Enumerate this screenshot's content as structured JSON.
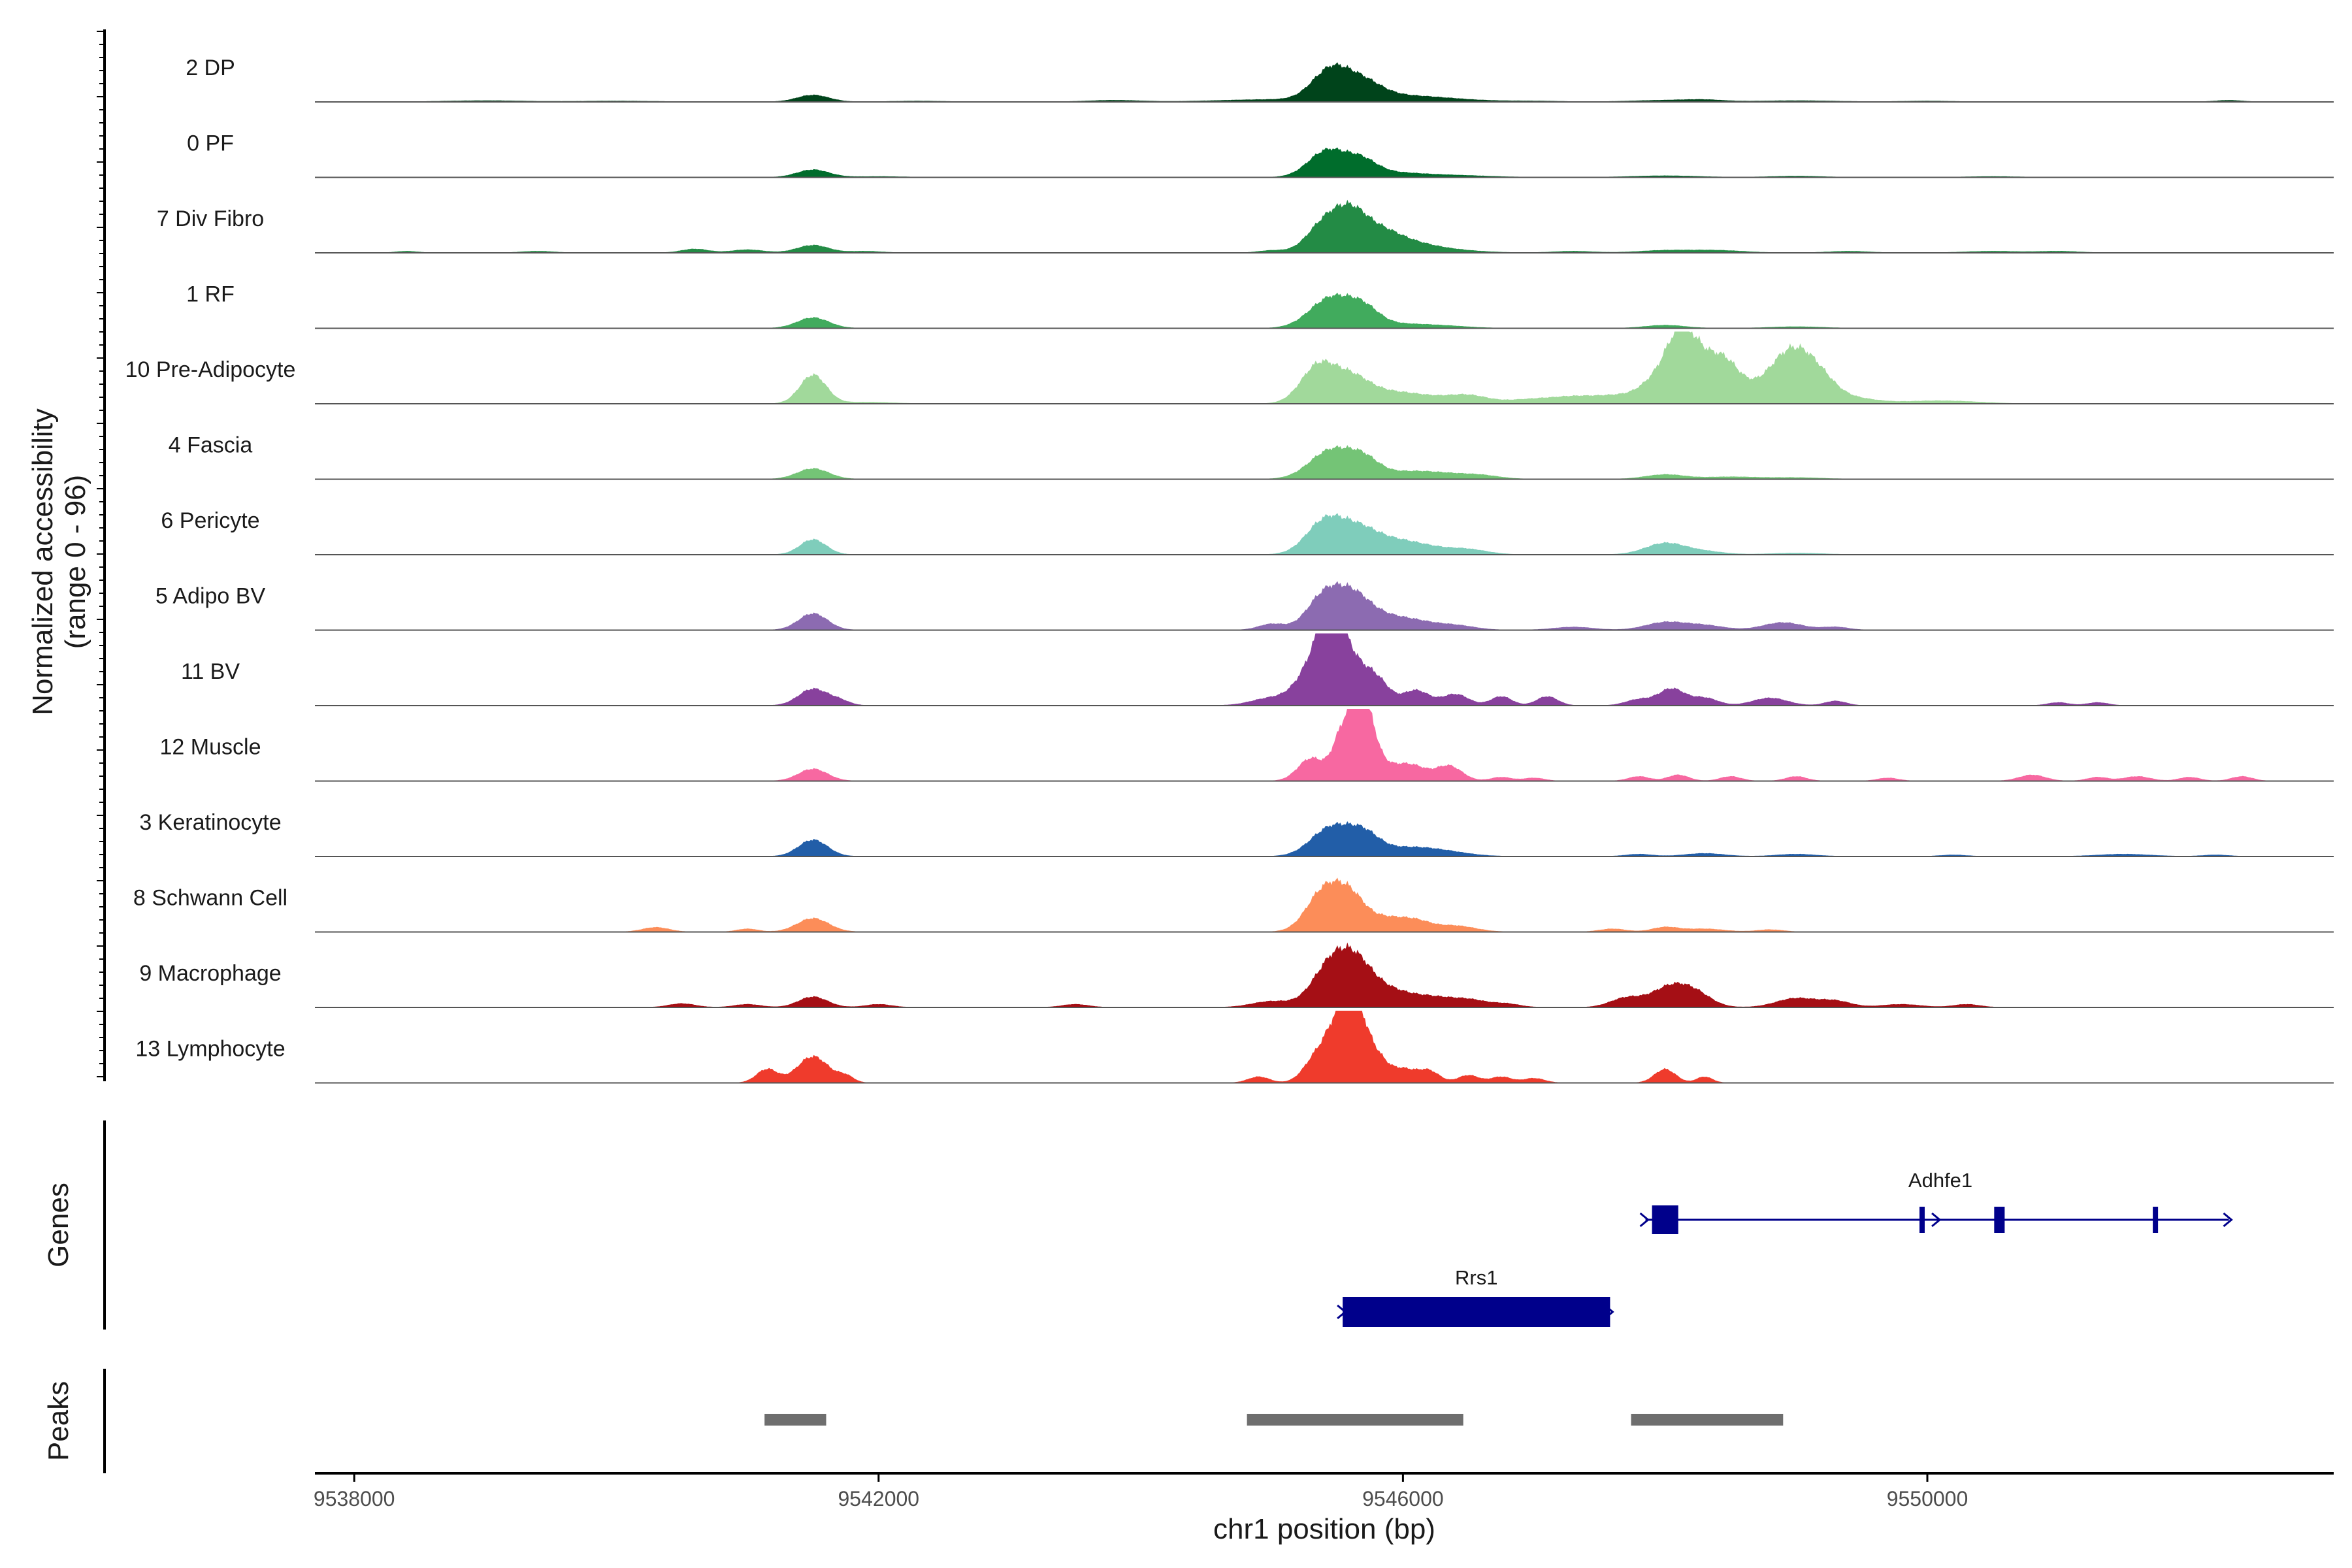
{
  "chart_data": {
    "type": "area",
    "region": "chr1",
    "xlim": [
      9537700,
      9553100
    ],
    "xlabel": "chr1 position (bp)",
    "ylabel": "Normalized accessibility",
    "ylabel_range": "(range 0 - 96)",
    "ylim": [
      0,
      96
    ],
    "x_ticks": [
      9538000,
      9542000,
      9546000,
      9550000
    ],
    "x_tick_labels": [
      "9538000",
      "9542000",
      "9546000",
      "9550000"
    ],
    "tracks": [
      {
        "name": "2 DP",
        "color": "#00441b",
        "peaks": [
          [
            9539000,
            300,
            1.5
          ],
          [
            9540000,
            300,
            1
          ],
          [
            9541500,
            120,
            9
          ],
          [
            9542300,
            200,
            1
          ],
          [
            9543800,
            200,
            2
          ],
          [
            9545000,
            400,
            3
          ],
          [
            9545450,
            140,
            40
          ],
          [
            9545700,
            140,
            20
          ],
          [
            9545900,
            300,
            7
          ],
          [
            9546300,
            300,
            3
          ],
          [
            9547000,
            200,
            1
          ],
          [
            9548000,
            250,
            2
          ],
          [
            9548300,
            150,
            2
          ],
          [
            9549000,
            300,
            1.5
          ],
          [
            9550000,
            200,
            1
          ],
          [
            9552300,
            100,
            2
          ]
        ]
      },
      {
        "name": "0 PF",
        "color": "#006d2c",
        "peaks": [
          [
            9541500,
            120,
            10
          ],
          [
            9542000,
            200,
            1
          ],
          [
            9545420,
            140,
            35
          ],
          [
            9545680,
            120,
            20
          ],
          [
            9545900,
            200,
            5
          ],
          [
            9546300,
            300,
            3
          ],
          [
            9548000,
            250,
            2
          ],
          [
            9549000,
            200,
            1.5
          ],
          [
            9550500,
            200,
            1
          ]
        ]
      },
      {
        "name": "7 Div Fibro",
        "color": "#238b45",
        "peaks": [
          [
            9538400,
            80,
            2
          ],
          [
            9539400,
            120,
            2
          ],
          [
            9540600,
            100,
            5
          ],
          [
            9541000,
            120,
            4
          ],
          [
            9541500,
            120,
            10
          ],
          [
            9541900,
            120,
            2
          ],
          [
            9545000,
            100,
            3
          ],
          [
            9545400,
            130,
            38
          ],
          [
            9545600,
            120,
            42
          ],
          [
            9545800,
            150,
            22
          ],
          [
            9546000,
            200,
            12
          ],
          [
            9546300,
            250,
            4
          ],
          [
            9547300,
            150,
            2
          ],
          [
            9548000,
            200,
            3
          ],
          [
            9548400,
            200,
            3
          ],
          [
            9549400,
            150,
            2
          ],
          [
            9550500,
            200,
            2
          ],
          [
            9551000,
            150,
            2
          ]
        ]
      },
      {
        "name": "1 RF",
        "color": "#41ab5d",
        "peaks": [
          [
            9541500,
            120,
            14
          ],
          [
            9545450,
            160,
            40
          ],
          [
            9545700,
            120,
            22
          ],
          [
            9545950,
            200,
            5
          ],
          [
            9546300,
            200,
            3
          ],
          [
            9548000,
            150,
            4
          ],
          [
            9549000,
            200,
            2
          ]
        ]
      },
      {
        "name": "10 Pre-Adipocyte",
        "color": "#a1d99b",
        "peaks": [
          [
            9541500,
            100,
            38
          ],
          [
            9541900,
            200,
            2
          ],
          [
            9545350,
            130,
            48
          ],
          [
            9545600,
            140,
            30
          ],
          [
            9545850,
            200,
            12
          ],
          [
            9546150,
            200,
            8
          ],
          [
            9546500,
            150,
            10
          ],
          [
            9547000,
            200,
            6
          ],
          [
            9547300,
            150,
            5
          ],
          [
            9547700,
            250,
            12
          ],
          [
            9547900,
            100,
            16
          ],
          [
            9548100,
            110,
            75
          ],
          [
            9548250,
            120,
            45
          ],
          [
            9548450,
            110,
            42
          ],
          [
            9548700,
            200,
            22
          ],
          [
            9548900,
            120,
            35
          ],
          [
            9549050,
            120,
            40
          ],
          [
            9549200,
            120,
            22
          ],
          [
            9549400,
            200,
            8
          ],
          [
            9550000,
            200,
            3
          ],
          [
            9550300,
            200,
            2
          ]
        ]
      },
      {
        "name": "4 Fascia",
        "color": "#74c476",
        "peaks": [
          [
            9541500,
            120,
            14
          ],
          [
            9545450,
            160,
            38
          ],
          [
            9545700,
            120,
            22
          ],
          [
            9546000,
            200,
            8
          ],
          [
            9546300,
            200,
            6
          ],
          [
            9546600,
            150,
            4
          ],
          [
            9548000,
            150,
            6
          ],
          [
            9548500,
            200,
            3
          ],
          [
            9549000,
            200,
            2
          ]
        ]
      },
      {
        "name": "6 Pericyte",
        "color": "#7fcdbb",
        "peaks": [
          [
            9541500,
            100,
            20
          ],
          [
            9545400,
            140,
            42
          ],
          [
            9545650,
            150,
            28
          ],
          [
            9545900,
            200,
            14
          ],
          [
            9546150,
            200,
            8
          ],
          [
            9546500,
            150,
            6
          ],
          [
            9548000,
            150,
            15
          ],
          [
            9548300,
            150,
            4
          ],
          [
            9549000,
            200,
            2
          ]
        ]
      },
      {
        "name": "5 Adipo BV",
        "color": "#8c6bb1",
        "peaks": [
          [
            9541500,
            110,
            22
          ],
          [
            9545000,
            100,
            8
          ],
          [
            9545400,
            130,
            45
          ],
          [
            9545620,
            130,
            40
          ],
          [
            9545850,
            150,
            15
          ],
          [
            9546100,
            150,
            10
          ],
          [
            9546400,
            150,
            6
          ],
          [
            9547300,
            150,
            4
          ],
          [
            9548000,
            150,
            10
          ],
          [
            9548300,
            150,
            6
          ],
          [
            9548900,
            150,
            10
          ],
          [
            9549300,
            100,
            4
          ]
        ]
      },
      {
        "name": "11 BV",
        "color": "#88419d",
        "peaks": [
          [
            9541500,
            110,
            22
          ],
          [
            9541700,
            80,
            6
          ],
          [
            9545000,
            150,
            10
          ],
          [
            9545300,
            120,
            42
          ],
          [
            9545450,
            100,
            92
          ],
          [
            9545600,
            120,
            48
          ],
          [
            9545800,
            100,
            30
          ],
          [
            9546100,
            100,
            20
          ],
          [
            9546400,
            100,
            15
          ],
          [
            9546750,
            80,
            12
          ],
          [
            9547100,
            80,
            12
          ],
          [
            9547800,
            100,
            8
          ],
          [
            9548050,
            100,
            22
          ],
          [
            9548300,
            100,
            10
          ],
          [
            9548800,
            130,
            10
          ],
          [
            9549300,
            80,
            6
          ],
          [
            9551000,
            80,
            4
          ],
          [
            9551300,
            80,
            4
          ]
        ]
      },
      {
        "name": "12 Muscle",
        "color": "#f768a1",
        "peaks": [
          [
            9541500,
            110,
            16
          ],
          [
            9545300,
            100,
            30
          ],
          [
            9545550,
            80,
            65
          ],
          [
            9545700,
            80,
            95
          ],
          [
            9545900,
            150,
            20
          ],
          [
            9546100,
            100,
            12
          ],
          [
            9546350,
            100,
            20
          ],
          [
            9546750,
            80,
            5
          ],
          [
            9547000,
            80,
            4
          ],
          [
            9547800,
            80,
            6
          ],
          [
            9548100,
            80,
            8
          ],
          [
            9548500,
            80,
            6
          ],
          [
            9549000,
            80,
            6
          ],
          [
            9549700,
            80,
            4
          ],
          [
            9550800,
            100,
            8
          ],
          [
            9551300,
            80,
            5
          ],
          [
            9551600,
            100,
            6
          ],
          [
            9552000,
            80,
            5
          ],
          [
            9552400,
            80,
            6
          ]
        ]
      },
      {
        "name": "3 Keratinocyte",
        "color": "#225ea8",
        "peaks": [
          [
            9541500,
            110,
            22
          ],
          [
            9545450,
            150,
            38
          ],
          [
            9545700,
            120,
            26
          ],
          [
            9546000,
            200,
            10
          ],
          [
            9546300,
            200,
            6
          ],
          [
            9547800,
            100,
            3
          ],
          [
            9548300,
            150,
            4
          ],
          [
            9549000,
            150,
            3
          ],
          [
            9550200,
            100,
            2
          ],
          [
            9551500,
            200,
            3
          ],
          [
            9552200,
            100,
            2
          ]
        ]
      },
      {
        "name": "8 Schwann Cell",
        "color": "#fc8d59",
        "peaks": [
          [
            9540300,
            100,
            6
          ],
          [
            9541000,
            80,
            4
          ],
          [
            9541500,
            120,
            18
          ],
          [
            9545400,
            130,
            55
          ],
          [
            9545600,
            110,
            38
          ],
          [
            9545850,
            150,
            18
          ],
          [
            9546100,
            120,
            12
          ],
          [
            9546400,
            150,
            8
          ],
          [
            9547600,
            100,
            4
          ],
          [
            9548000,
            100,
            6
          ],
          [
            9548300,
            150,
            4
          ],
          [
            9548800,
            100,
            3
          ]
        ]
      },
      {
        "name": "9 Macrophage",
        "color": "#a50f15",
        "peaks": [
          [
            9540500,
            100,
            5
          ],
          [
            9541000,
            100,
            4
          ],
          [
            9541500,
            110,
            14
          ],
          [
            9542000,
            100,
            4
          ],
          [
            9543500,
            100,
            4
          ],
          [
            9545000,
            150,
            8
          ],
          [
            9545450,
            140,
            55
          ],
          [
            9545650,
            130,
            48
          ],
          [
            9545900,
            150,
            20
          ],
          [
            9546200,
            150,
            12
          ],
          [
            9546500,
            150,
            10
          ],
          [
            9546800,
            100,
            4
          ],
          [
            9547700,
            120,
            12
          ],
          [
            9548050,
            150,
            28
          ],
          [
            9548250,
            120,
            12
          ],
          [
            9549000,
            150,
            12
          ],
          [
            9549300,
            120,
            8
          ],
          [
            9549800,
            150,
            4
          ],
          [
            9550300,
            100,
            4
          ]
        ]
      },
      {
        "name": "13 Lymphocyte",
        "color": "#ef3b2c",
        "peaks": [
          [
            9541150,
            80,
            18
          ],
          [
            9541500,
            120,
            35
          ],
          [
            9541750,
            60,
            8
          ],
          [
            9544900,
            80,
            8
          ],
          [
            9545350,
            100,
            35
          ],
          [
            9545520,
            90,
            75
          ],
          [
            9545650,
            80,
            80
          ],
          [
            9545800,
            80,
            30
          ],
          [
            9546000,
            100,
            18
          ],
          [
            9546200,
            80,
            15
          ],
          [
            9546500,
            80,
            10
          ],
          [
            9546750,
            80,
            8
          ],
          [
            9547000,
            80,
            6
          ],
          [
            9548000,
            80,
            18
          ],
          [
            9548300,
            60,
            8
          ]
        ]
      }
    ],
    "genes": [
      {
        "name": "Rrs1",
        "strand": "+",
        "start": 9545540,
        "end": 9547580,
        "exons": [
          [
            9545540,
            9547580
          ]
        ],
        "row": 2
      },
      {
        "name": "Adhfe1",
        "strand": "+",
        "start": 9547850,
        "end": 9552300,
        "exons": [
          [
            9547900,
            9548100
          ],
          [
            9549940,
            9549980
          ],
          [
            9550510,
            9550590
          ],
          [
            9551720,
            9551760
          ]
        ],
        "row": 1
      }
    ],
    "peaks_track": [
      [
        9541130,
        9541600
      ],
      [
        9544810,
        9546460
      ],
      [
        9547740,
        9548900
      ]
    ],
    "panel_labels": {
      "genes": "Genes",
      "peaks": "Peaks"
    }
  }
}
